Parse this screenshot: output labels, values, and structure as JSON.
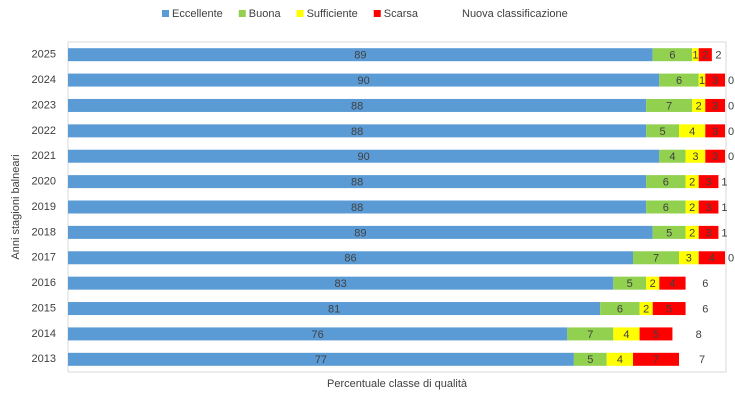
{
  "chart_data": {
    "type": "stacked-bar-horizontal",
    "categories": [
      "2025",
      "2024",
      "2023",
      "2022",
      "2021",
      "2020",
      "2019",
      "2018",
      "2017",
      "2016",
      "2015",
      "2014",
      "2013"
    ],
    "series": [
      {
        "name": "Eccellente",
        "color": "#5b9bd5",
        "values": [
          89,
          90,
          88,
          88,
          90,
          88,
          88,
          89,
          86,
          83,
          81,
          76,
          77
        ]
      },
      {
        "name": "Buona",
        "color": "#92d050",
        "values": [
          6,
          6,
          7,
          5,
          4,
          6,
          6,
          5,
          7,
          5,
          6,
          7,
          5
        ]
      },
      {
        "name": "Sufficiente",
        "color": "#ffff00",
        "values": [
          1,
          1,
          2,
          4,
          3,
          2,
          2,
          2,
          3,
          2,
          2,
          4,
          4
        ]
      },
      {
        "name": "Scarsa",
        "color": "#ff0000",
        "values": [
          2,
          3,
          3,
          3,
          3,
          3,
          3,
          3,
          4,
          4,
          5,
          5,
          7
        ]
      },
      {
        "name": "Nuova classificazione",
        "color": null,
        "values": [
          2,
          0,
          0,
          0,
          0,
          1,
          1,
          1,
          0,
          6,
          6,
          8,
          7
        ]
      }
    ],
    "xlim": [
      0,
      100
    ],
    "x_label": "Percentuale classe di qualità",
    "y_label": "Anni stagioni balneari",
    "legend": "top"
  }
}
